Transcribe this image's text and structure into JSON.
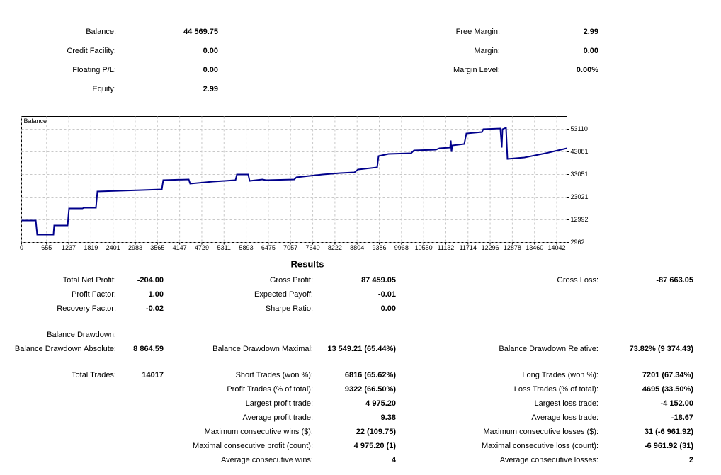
{
  "account": {
    "left": [
      {
        "label": "Balance:",
        "value": "44 569.75"
      },
      {
        "label": "Credit Facility:",
        "value": "0.00"
      },
      {
        "label": "Floating P/L:",
        "value": "0.00"
      },
      {
        "label": "Equity:",
        "value": "2.99"
      }
    ],
    "right": [
      {
        "label": "Free Margin:",
        "value": "2.99"
      },
      {
        "label": "Margin:",
        "value": "0.00"
      },
      {
        "label": "Margin Level:",
        "value": "0.00%"
      }
    ]
  },
  "chart_data": {
    "type": "line",
    "title": "Balance",
    "color": "#00008b",
    "grid": true,
    "x": [
      0,
      372,
      409,
      836,
      855,
      1208,
      1245,
      1598,
      1635,
      1951,
      1989,
      3160,
      3680,
      3717,
      4386,
      4423,
      5018,
      5613,
      5650,
      5947,
      5984,
      6319,
      6412,
      7155,
      7211,
      7899,
      8363,
      8735,
      8828,
      9330,
      9367,
      9627,
      10222,
      10296,
      10872,
      10965,
      11244,
      11263,
      11281,
      11300,
      11616,
      11671,
      12080,
      12117,
      12563,
      12600,
      12619,
      12712,
      12749,
      13195,
      13753,
      14311
    ],
    "values": [
      12680,
      12680,
      6410,
      6410,
      10485,
      10485,
      18007,
      18007,
      18320,
      18320,
      25530,
      26155,
      26470,
      30545,
      30860,
      28980,
      29900,
      30545,
      33050,
      33050,
      30230,
      30860,
      30545,
      30860,
      31800,
      33050,
      33680,
      33990,
      35245,
      36180,
      41200,
      42140,
      42455,
      43710,
      44020,
      44650,
      44960,
      48095,
      43080,
      45900,
      46525,
      51230,
      51855,
      53110,
      53420,
      44960,
      53110,
      53740,
      39950,
      40580,
      42455,
      44650
    ],
    "xlim": [
      0,
      14311
    ],
    "ylim": [
      2962,
      58751
    ],
    "xticks": [
      0,
      655,
      1237,
      1819,
      2401,
      2983,
      3565,
      4147,
      4729,
      5311,
      5893,
      6475,
      7057,
      7640,
      8222,
      8804,
      9386,
      9968,
      10550,
      11132,
      11714,
      12296,
      12878,
      13460,
      14042
    ],
    "yticks": [
      2962,
      12992,
      23021,
      33051,
      43081,
      53110
    ]
  },
  "results": {
    "title": "Results",
    "groups": [
      [
        {
          "a": {
            "label": "Total Net Profit:",
            "value": "-204.00"
          },
          "b": {
            "label": "Gross Profit:",
            "value": "87 459.05"
          },
          "c": {
            "label": "Gross Loss:",
            "value": "-87 663.05"
          }
        },
        {
          "a": {
            "label": "Profit Factor:",
            "value": "1.00"
          },
          "b": {
            "label": "Expected Payoff:",
            "value": "-0.01"
          }
        },
        {
          "a": {
            "label": "Recovery Factor:",
            "value": "-0.02"
          },
          "b": {
            "label": "Sharpe Ratio:",
            "value": "0.00"
          }
        }
      ],
      [
        {
          "a": {
            "label": "Balance Drawdown:"
          }
        },
        {
          "a": {
            "label": "Balance Drawdown Absolute:",
            "value": "8 864.59"
          },
          "b": {
            "label": "Balance Drawdown Maximal:",
            "value": "13 549.21 (65.44%)"
          },
          "c": {
            "label": "Balance Drawdown Relative:",
            "value": "73.82% (9 374.43)"
          }
        }
      ],
      [
        {
          "a": {
            "label": "Total Trades:",
            "value": "14017"
          },
          "b": {
            "label": "Short Trades (won %):",
            "value": "6816 (65.62%)"
          },
          "c": {
            "label": "Long Trades (won %):",
            "value": "7201 (67.34%)"
          }
        },
        {
          "b": {
            "label": "Profit Trades (% of total):",
            "value": "9322 (66.50%)"
          },
          "c": {
            "label": "Loss Trades (% of total):",
            "value": "4695 (33.50%)"
          }
        },
        {
          "b": {
            "label": "Largest profit trade:",
            "value": "4 975.20"
          },
          "c": {
            "label": "Largest loss trade:",
            "value": "-4 152.00"
          }
        },
        {
          "b": {
            "label": "Average profit trade:",
            "value": "9.38"
          },
          "c": {
            "label": "Average loss trade:",
            "value": "-18.67"
          }
        },
        {
          "b": {
            "label": "Maximum consecutive wins ($):",
            "value": "22 (109.75)"
          },
          "c": {
            "label": "Maximum consecutive losses ($):",
            "value": "31 (-6 961.92)"
          }
        },
        {
          "b": {
            "label": "Maximal consecutive profit (count):",
            "value": "4 975.20 (1)"
          },
          "c": {
            "label": "Maximal consecutive loss (count):",
            "value": "-6 961.92 (31)"
          }
        },
        {
          "b": {
            "label": "Average consecutive wins:",
            "value": "4"
          },
          "c": {
            "label": "Average consecutive losses:",
            "value": "2"
          }
        }
      ]
    ]
  }
}
